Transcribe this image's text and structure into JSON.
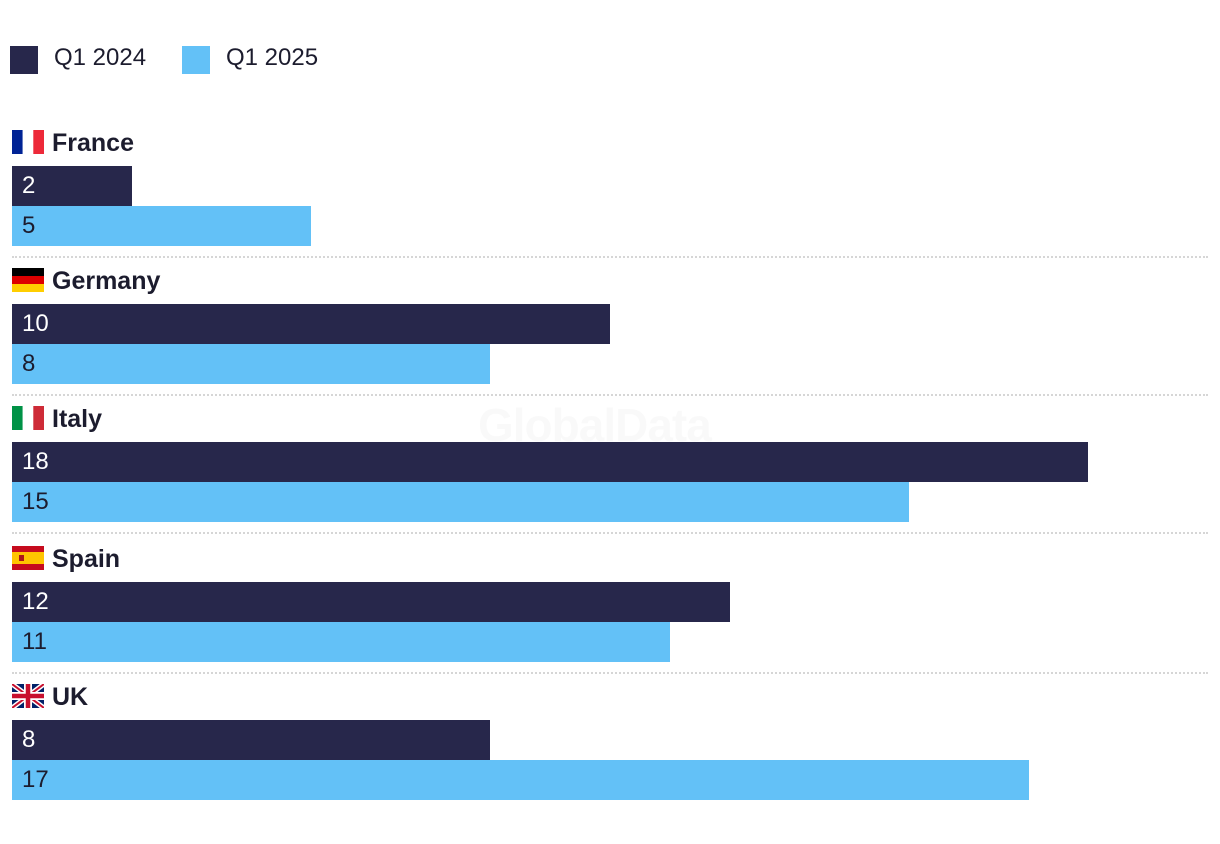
{
  "chart_data": {
    "type": "bar",
    "orientation": "horizontal",
    "categories": [
      "France",
      "Germany",
      "Italy",
      "Spain",
      "UK"
    ],
    "series": [
      {
        "name": "Q1 2024",
        "color": "#27274b",
        "values": [
          2,
          10,
          18,
          12,
          8
        ]
      },
      {
        "name": "Q1 2025",
        "color": "#63c1f7",
        "values": [
          5,
          8,
          15,
          11,
          17
        ]
      }
    ],
    "category_icons": [
      "france-flag-icon",
      "germany-flag-icon",
      "italy-flag-icon",
      "spain-flag-icon",
      "uk-flag-icon"
    ],
    "xlim": [
      0,
      20
    ],
    "legend_position": "top-left",
    "grid": false,
    "data_labels": "inside-bar-start",
    "separators": "dotted",
    "watermark": "GlobalData"
  }
}
